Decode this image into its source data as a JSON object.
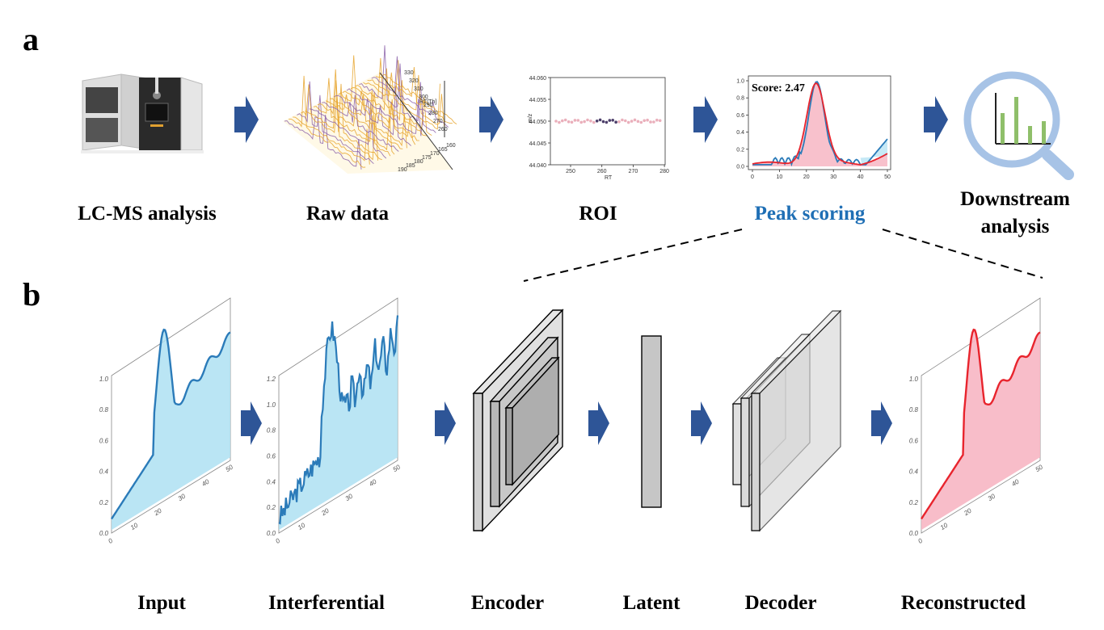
{
  "panel_a": {
    "letter": "a",
    "labels": {
      "lcms": "LC-MS analysis",
      "raw": "Raw data",
      "roi": "ROI",
      "peak": "Peak scoring",
      "downstream_line1": "Downstream",
      "downstream_line2": "analysis"
    },
    "roi_plot": {
      "ylabel": "m/z",
      "xlabel": "RT",
      "yticks": [
        "44.060",
        "44.055",
        "44.050",
        "44.045",
        "44.040"
      ],
      "xticks": [
        "250",
        "260",
        "270",
        "280"
      ]
    },
    "peak_plot": {
      "score_text": "Score: 2.47",
      "yticks": [
        "1.0",
        "0.8",
        "0.6",
        "0.4",
        "0.2",
        "0.0"
      ],
      "xticks": [
        "0",
        "10",
        "20",
        "30",
        "40",
        "50"
      ]
    },
    "raw_ticks": [
      "330",
      "320",
      "310",
      "300",
      "290",
      "280",
      "270",
      "260",
      "160",
      "165",
      "170",
      "175",
      "180",
      "185",
      "190"
    ],
    "raw_axis_label": "RT[Th]"
  },
  "panel_b": {
    "letter": "b",
    "labels": {
      "input": "Input",
      "interferential": "Interferential",
      "encoder": "Encoder",
      "latent": "Latent",
      "decoder": "Decoder",
      "reconstructed": "Reconstructed"
    },
    "input_yticks": [
      "0.0",
      "0.2",
      "0.4",
      "0.6",
      "0.8",
      "1.0"
    ],
    "interf_yticks": [
      "0.0",
      "0.2",
      "0.4",
      "0.6",
      "0.8",
      "1.0",
      "1.2"
    ],
    "xticks": [
      "0",
      "10",
      "20",
      "30",
      "40",
      "50"
    ]
  },
  "colors": {
    "arrow": "#2e5597",
    "peak_label": "#1f6fb5",
    "blue_line": "#2b7bb9",
    "blue_fill": "#aee0f2",
    "red_line": "#e8242d",
    "red_fill": "#f7b6c3",
    "magnifier": "#a7c3e6",
    "bars": "#8fbf6a"
  }
}
